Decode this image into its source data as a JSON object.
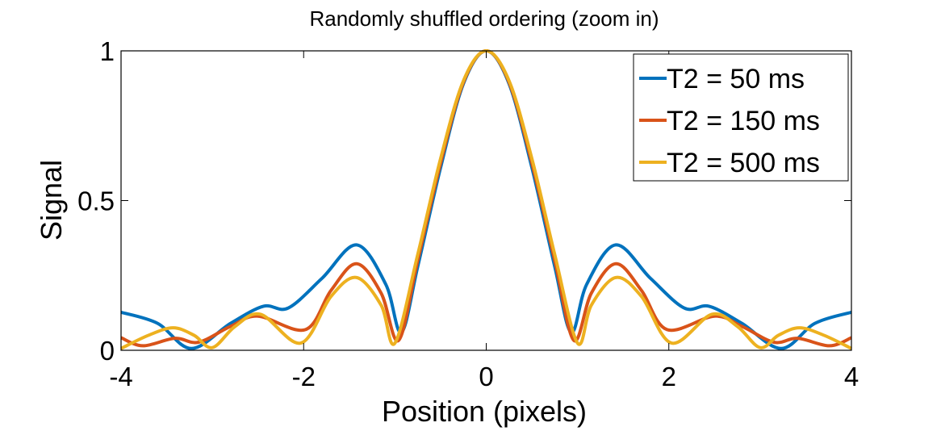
{
  "chart_data": {
    "type": "line",
    "title": "Randomly shuffled ordering (zoom in)",
    "xlabel": "Position (pixels)",
    "ylabel": "Signal",
    "xlim": [
      -4,
      4
    ],
    "ylim": [
      0,
      1
    ],
    "xticks": [
      -4,
      -2,
      0,
      2,
      4
    ],
    "xtick_labels": [
      "-4",
      "-2",
      "0",
      "2",
      "4"
    ],
    "yticks": [
      0,
      0.5,
      1
    ],
    "ytick_labels": [
      "0",
      "0.5",
      "1"
    ],
    "grid": false,
    "legend_position": "top-right",
    "symmetric_about_zero": true,
    "series": [
      {
        "name": "T2 = 50 ms",
        "color": "#0072BD",
        "x": [
          -4,
          -3.6,
          -3.23,
          -2.8,
          -2.44,
          -2.17,
          -1.8,
          -1.42,
          -1.1,
          -0.93,
          -0.75,
          -0.5,
          -0.25,
          0
        ],
        "y": [
          0.127,
          0.09,
          0.006,
          0.09,
          0.147,
          0.141,
          0.24,
          0.352,
          0.22,
          0.06,
          0.28,
          0.61,
          0.89,
          1
        ]
      },
      {
        "name": "T2 = 150 ms",
        "color": "#D95319",
        "x": [
          -4,
          -3.76,
          -3.41,
          -3.15,
          -2.8,
          -2.5,
          -1.98,
          -1.7,
          -1.42,
          -1.15,
          -0.96,
          -0.75,
          -0.5,
          -0.25,
          0
        ],
        "y": [
          0.042,
          0.015,
          0.04,
          0.027,
          0.08,
          0.114,
          0.069,
          0.2,
          0.289,
          0.19,
          0.033,
          0.3,
          0.625,
          0.895,
          1
        ]
      },
      {
        "name": "T2 = 500 ms",
        "color": "#EDB120",
        "x": [
          -4,
          -3.7,
          -3.43,
          -3.2,
          -3.0,
          -2.75,
          -2.47,
          -2.03,
          -1.7,
          -1.42,
          -1.15,
          -1.0,
          -0.75,
          -0.5,
          -0.25,
          0
        ],
        "y": [
          0.006,
          0.05,
          0.075,
          0.05,
          0.009,
          0.08,
          0.12,
          0.024,
          0.18,
          0.243,
          0.15,
          0.024,
          0.32,
          0.64,
          0.9,
          1
        ]
      }
    ]
  }
}
